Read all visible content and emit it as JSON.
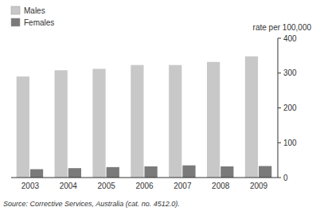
{
  "chart_data": {
    "type": "bar",
    "categories": [
      "2003",
      "2004",
      "2005",
      "2006",
      "2007",
      "2008",
      "2009"
    ],
    "series": [
      {
        "name": "Males",
        "color": "#c8c8c8",
        "values": [
          290,
          308,
          312,
          323,
          323,
          332,
          348
        ]
      },
      {
        "name": "Females",
        "color": "#7a7a7a",
        "values": [
          24,
          27,
          30,
          32,
          35,
          32,
          33
        ]
      }
    ],
    "ylim": [
      0,
      400
    ],
    "yticks": [
      0,
      100,
      200,
      300,
      400
    ],
    "ylabel": "rate per 100,000",
    "source": "Source: Corrective Services, Australia (cat. no. 4512.0).",
    "legend": "upper left",
    "grid": false
  }
}
